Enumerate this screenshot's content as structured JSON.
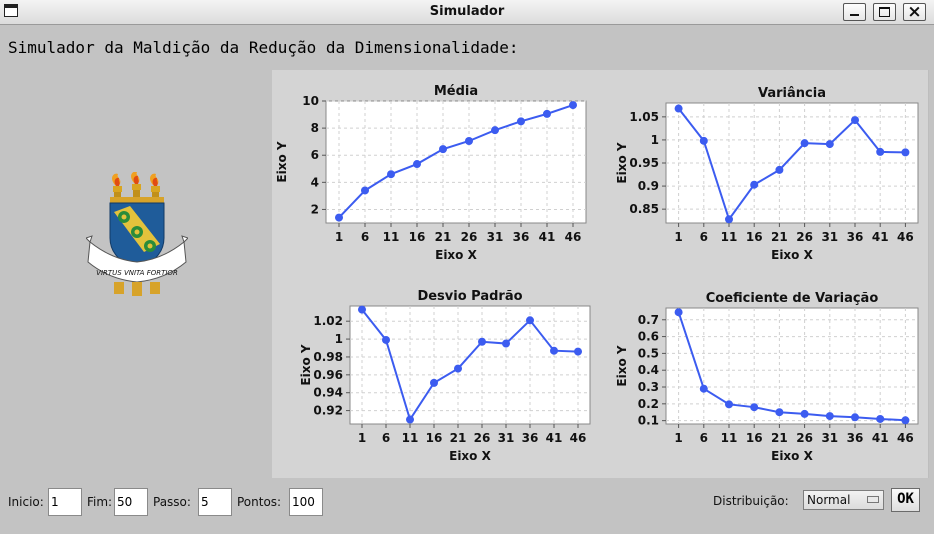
{
  "window": {
    "title": "Simulador"
  },
  "heading": "Simulador da Maldição da Redução da Dimensionalidade:",
  "logo": {
    "motto": "VIRTUS VNITA FORTIOR"
  },
  "controls": {
    "inicio_label": "Inicio:",
    "inicio_value": "1",
    "fim_label": "Fim:",
    "fim_value": "50",
    "passo_label": "Passo:",
    "passo_value": "5",
    "pontos_label": "Pontos:",
    "pontos_value": "100",
    "distribuicao_label": "Distribuição:",
    "distribuicao_value": "Normal",
    "ok_label": "OK"
  },
  "colors": {
    "series": "#3c5cf0",
    "plot_bg": "#ffffff",
    "panel_bg": "#d4d4d4"
  },
  "chart_data": [
    {
      "type": "line",
      "title": "Média",
      "xlabel": "Eixo X",
      "ylabel": "Eixo Y",
      "x": [
        1,
        6,
        11,
        16,
        21,
        26,
        31,
        36,
        41,
        46
      ],
      "values": [
        1.4,
        3.4,
        4.6,
        5.35,
        6.45,
        7.05,
        7.85,
        8.5,
        9.05,
        9.7
      ],
      "ylim": [
        1,
        10
      ],
      "yticks": [
        2,
        4,
        6,
        8,
        10
      ],
      "yticklabels": [
        "2",
        "4",
        "6",
        "8",
        "10"
      ],
      "grid": true
    },
    {
      "type": "line",
      "title": "Variância",
      "xlabel": "Eixo X",
      "ylabel": "Eixo Y",
      "x": [
        1,
        6,
        11,
        16,
        21,
        26,
        31,
        36,
        41,
        46
      ],
      "values": [
        1.068,
        0.998,
        0.828,
        0.903,
        0.935,
        0.993,
        0.991,
        1.043,
        0.974,
        0.973
      ],
      "ylim": [
        0.82,
        1.08
      ],
      "yticks": [
        0.85,
        0.9,
        0.95,
        1.0,
        1.05
      ],
      "yticklabels": [
        "0.85",
        "0.9",
        "0.95",
        "1",
        "1.05"
      ],
      "grid": true
    },
    {
      "type": "line",
      "title": "Desvio Padrão",
      "xlabel": "Eixo X",
      "ylabel": "Eixo Y",
      "x": [
        1,
        6,
        11,
        16,
        21,
        26,
        31,
        36,
        41,
        46
      ],
      "values": [
        1.033,
        0.999,
        0.91,
        0.951,
        0.967,
        0.997,
        0.995,
        1.021,
        0.987,
        0.986
      ],
      "ylim": [
        0.905,
        1.037
      ],
      "yticks": [
        0.92,
        0.94,
        0.96,
        0.98,
        1.0,
        1.02
      ],
      "yticklabels": [
        "0.92",
        "0.94",
        "0.96",
        "0.98",
        "1",
        "1.02"
      ],
      "grid": true
    },
    {
      "type": "line",
      "title": "Coeficiente de Variação",
      "xlabel": "Eixo X",
      "ylabel": "Eixo Y",
      "x": [
        1,
        6,
        11,
        16,
        21,
        26,
        31,
        36,
        41,
        46
      ],
      "values": [
        0.745,
        0.29,
        0.197,
        0.18,
        0.15,
        0.14,
        0.127,
        0.12,
        0.11,
        0.102
      ],
      "ylim": [
        0.08,
        0.77
      ],
      "yticks": [
        0.1,
        0.2,
        0.3,
        0.4,
        0.5,
        0.6,
        0.7
      ],
      "yticklabels": [
        "0.1",
        "0.2",
        "0.3",
        "0.4",
        "0.5",
        "0.6",
        "0.7"
      ],
      "grid": true
    }
  ]
}
